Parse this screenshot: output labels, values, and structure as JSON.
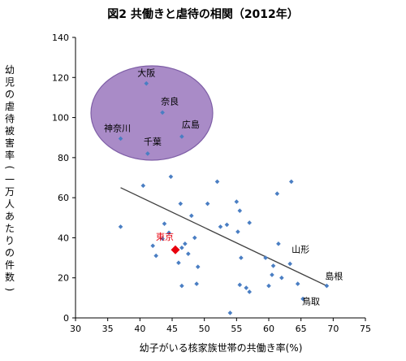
{
  "chart_data": {
    "type": "scatter",
    "title": "図2 共働きと虐待の相関（2012年）",
    "xlabel": "幼子がいる核家族世帯の共働き率(%)",
    "ylabel": "幼児の虐待被害率(一万人あたりの件数)",
    "xlim": [
      30,
      75
    ],
    "ylim": [
      0,
      140
    ],
    "xticks": [
      30,
      35,
      40,
      45,
      50,
      55,
      60,
      65,
      70,
      75
    ],
    "yticks": [
      0,
      20,
      40,
      60,
      80,
      100,
      120,
      140
    ],
    "grid": false,
    "legend": "none",
    "colors": {
      "point": "#4a7ec3",
      "highlight": "#e8000d",
      "ellipse_fill": "#a98bc7",
      "ellipse_stroke": "#7e5ea6",
      "trend": "#404040"
    },
    "points": [
      {
        "x": 41.0,
        "y": 117.0,
        "label": "大阪"
      },
      {
        "x": 43.5,
        "y": 102.5,
        "label": "奈良"
      },
      {
        "x": 46.5,
        "y": 90.5,
        "label": "広島"
      },
      {
        "x": 37.0,
        "y": 89.5,
        "label": "神奈川"
      },
      {
        "x": 41.2,
        "y": 82.0,
        "label": "千葉"
      },
      {
        "x": 45.5,
        "y": 34.0,
        "label": "東京",
        "highlight": true
      },
      {
        "x": 63.3,
        "y": 27.0,
        "label": "山形"
      },
      {
        "x": 69.0,
        "y": 16.0,
        "label": "島根"
      },
      {
        "x": 65.3,
        "y": 9.5,
        "label": "鳥取"
      },
      {
        "x": 37.0,
        "y": 45.5
      },
      {
        "x": 40.5,
        "y": 66.0
      },
      {
        "x": 42.0,
        "y": 36.0
      },
      {
        "x": 42.5,
        "y": 31.0
      },
      {
        "x": 43.5,
        "y": 39.5
      },
      {
        "x": 43.8,
        "y": 47.0
      },
      {
        "x": 44.5,
        "y": 42.5
      },
      {
        "x": 44.8,
        "y": 70.5
      },
      {
        "x": 46.0,
        "y": 27.5
      },
      {
        "x": 46.3,
        "y": 57.0
      },
      {
        "x": 46.5,
        "y": 16.0
      },
      {
        "x": 46.5,
        "y": 35.0
      },
      {
        "x": 47.0,
        "y": 37.0
      },
      {
        "x": 47.5,
        "y": 32.0
      },
      {
        "x": 48.0,
        "y": 51.0
      },
      {
        "x": 48.5,
        "y": 40.0
      },
      {
        "x": 48.8,
        "y": 17.0
      },
      {
        "x": 49.0,
        "y": 25.5
      },
      {
        "x": 50.5,
        "y": 57.0
      },
      {
        "x": 52.0,
        "y": 68.0
      },
      {
        "x": 52.5,
        "y": 45.5
      },
      {
        "x": 53.5,
        "y": 46.5
      },
      {
        "x": 54.0,
        "y": 2.5
      },
      {
        "x": 55.0,
        "y": 58.0
      },
      {
        "x": 55.2,
        "y": 43.0
      },
      {
        "x": 55.5,
        "y": 53.5
      },
      {
        "x": 55.5,
        "y": 16.5
      },
      {
        "x": 55.7,
        "y": 30.0
      },
      {
        "x": 56.5,
        "y": 15.0
      },
      {
        "x": 57.0,
        "y": 47.5
      },
      {
        "x": 57.0,
        "y": 13.0
      },
      {
        "x": 59.5,
        "y": 30.0
      },
      {
        "x": 60.0,
        "y": 16.0
      },
      {
        "x": 60.5,
        "y": 21.5
      },
      {
        "x": 60.7,
        "y": 26.0
      },
      {
        "x": 61.3,
        "y": 62.0
      },
      {
        "x": 61.5,
        "y": 37.0
      },
      {
        "x": 62.0,
        "y": 20.0
      },
      {
        "x": 63.5,
        "y": 68.0
      },
      {
        "x": 64.5,
        "y": 17.0
      }
    ],
    "trendline": {
      "x": [
        37,
        69
      ],
      "y": [
        65,
        16
      ]
    },
    "cluster_labels": [
      "大阪",
      "奈良",
      "広島",
      "神奈川",
      "千葉"
    ]
  }
}
